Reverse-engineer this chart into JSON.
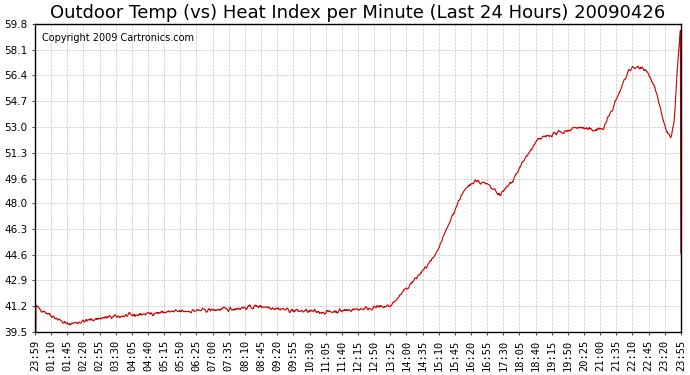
{
  "title": "Outdoor Temp (vs) Heat Index per Minute (Last 24 Hours) 20090426",
  "copyright_text": "Copyright 2009 Cartronics.com",
  "line_color": "#cc0000",
  "background_color": "#ffffff",
  "grid_color": "#aaaaaa",
  "yticks": [
    39.5,
    41.2,
    42.9,
    44.6,
    46.3,
    48.0,
    49.6,
    51.3,
    53.0,
    54.7,
    56.4,
    58.1,
    59.8
  ],
  "ymin": 39.5,
  "ymax": 59.8,
  "xtick_labels": [
    "23:59",
    "01:10",
    "01:45",
    "02:20",
    "02:55",
    "03:30",
    "04:05",
    "04:40",
    "05:15",
    "05:50",
    "06:25",
    "07:00",
    "07:35",
    "08:10",
    "08:45",
    "09:20",
    "09:55",
    "10:30",
    "11:05",
    "11:40",
    "12:15",
    "12:50",
    "13:25",
    "14:00",
    "14:35",
    "15:10",
    "15:45",
    "16:20",
    "16:55",
    "17:30",
    "18:05",
    "18:40",
    "19:15",
    "19:50",
    "20:25",
    "21:00",
    "21:35",
    "22:10",
    "22:45",
    "23:20",
    "23:55"
  ],
  "title_fontsize": 13,
  "tick_fontsize": 7.5,
  "copyright_fontsize": 7,
  "keypoints_x": [
    0,
    0.05,
    0.1,
    0.15,
    0.2,
    0.25,
    0.3,
    0.35,
    0.4,
    0.45,
    0.5,
    0.55,
    0.6,
    0.62,
    0.64,
    0.66,
    0.68,
    0.7,
    0.72,
    0.74,
    0.76,
    0.78,
    0.8,
    0.82,
    0.84,
    0.86,
    0.88,
    0.9,
    0.92,
    0.94,
    0.95,
    0.96,
    0.97,
    0.975,
    0.98,
    0.985,
    0.99,
    0.995,
    1.0
  ],
  "keypoints_y": [
    41.2,
    40.0,
    40.4,
    40.6,
    40.8,
    40.9,
    41.0,
    41.2,
    40.9,
    40.8,
    41.0,
    41.2,
    43.5,
    44.5,
    46.5,
    48.5,
    49.5,
    49.2,
    48.5,
    49.5,
    51.0,
    52.2,
    52.5,
    52.7,
    53.0,
    52.8,
    52.9,
    54.8,
    56.8,
    57.0,
    56.5,
    55.5,
    54.0,
    53.0,
    52.5,
    52.2,
    53.5,
    57.0,
    59.8
  ]
}
